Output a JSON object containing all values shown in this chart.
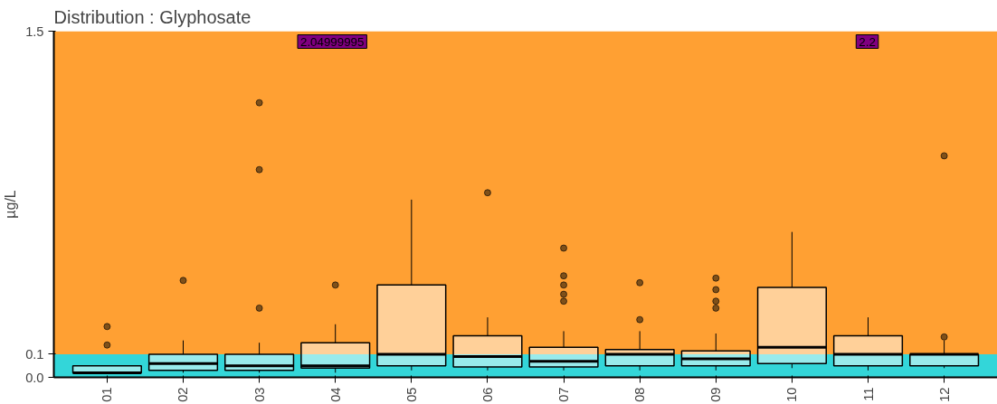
{
  "chart_data": {
    "type": "box",
    "title": "Distribution : Glyphosate",
    "ylabel": "µg/L",
    "categories": [
      "01",
      "02",
      "03",
      "04",
      "05",
      "06",
      "07",
      "08",
      "09",
      "10",
      "11",
      "12"
    ],
    "series": [
      {
        "color": "#ffffff",
        "boxes": [
          {
            "low": 0.02,
            "q1": 0.02,
            "median": 0.02,
            "q3": 0.05,
            "high": 0.05,
            "outliers": [
              0.14,
              0.22
            ]
          },
          {
            "low": 0.02,
            "q1": 0.03,
            "median": 0.06,
            "q3": 0.1,
            "high": 0.16,
            "outliers": [
              0.42
            ]
          },
          {
            "low": 0.02,
            "q1": 0.03,
            "median": 0.05,
            "q3": 0.1,
            "high": 0.15,
            "outliers": [
              0.3,
              0.9,
              1.19
            ]
          },
          {
            "low": 0.02,
            "q1": 0.04,
            "median": 0.05,
            "q3": 0.15,
            "high": 0.23,
            "outliers": [
              0.4
            ]
          },
          {
            "low": 0.03,
            "q1": 0.05,
            "median": 0.1,
            "q3": 0.4,
            "high": 0.77
          },
          {
            "low": 0.03,
            "q1": 0.045,
            "median": 0.09,
            "q3": 0.18,
            "high": 0.26,
            "outliers": [
              0.8
            ]
          },
          {
            "low": 0.03,
            "q1": 0.045,
            "median": 0.07,
            "q3": 0.13,
            "high": 0.2,
            "outliers": [
              0.33,
              0.36,
              0.4,
              0.44,
              0.56
            ]
          },
          {
            "low": 0.03,
            "q1": 0.05,
            "median": 0.1,
            "q3": 0.12,
            "high": 0.2,
            "outliers": [
              0.25,
              0.41
            ]
          },
          {
            "low": 0.03,
            "q1": 0.05,
            "median": 0.08,
            "q3": 0.115,
            "high": 0.19,
            "outliers": [
              0.3,
              0.33,
              0.38,
              0.43
            ]
          },
          {
            "low": 0.04,
            "q1": 0.06,
            "median": 0.13,
            "q3": 0.39,
            "high": 0.63
          },
          {
            "low": 0.03,
            "q1": 0.05,
            "median": 0.1,
            "q3": 0.18,
            "high": 0.26
          },
          {
            "low": 0.04,
            "q1": 0.05,
            "median": 0.1,
            "q3": 0.1,
            "high": 0.16,
            "outliers": [
              0.175,
              0.96
            ]
          }
        ]
      }
    ],
    "ylim": [
      0,
      1.5
    ],
    "yticks": [
      {
        "value": 0,
        "label": "0.0"
      },
      0.1,
      {
        "value": 1.5,
        "label": "1.5"
      }
    ],
    "bands": [
      {
        "axis": "y",
        "from": 0,
        "to": 0.1,
        "color": "#33d6d9"
      },
      {
        "axis": "y",
        "from": 0.1,
        "to": 1.5,
        "color": "#ffa033"
      }
    ],
    "annotations": [
      "2.04999995",
      "2.2"
    ]
  }
}
